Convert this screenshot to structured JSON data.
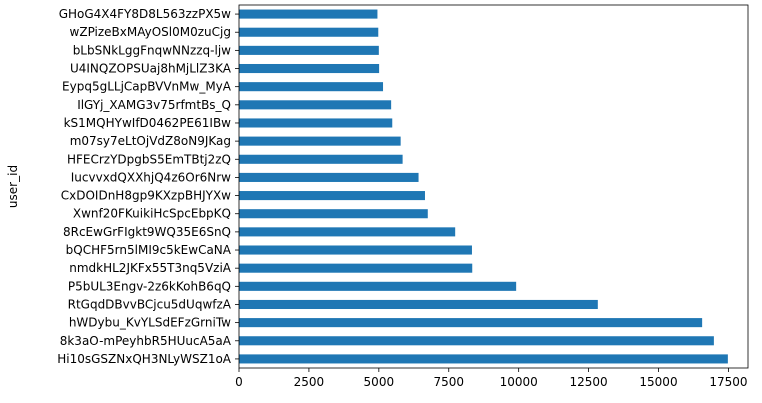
{
  "chart_data": {
    "type": "bar",
    "orientation": "horizontal",
    "ylabel": "user_id",
    "xlabel": "",
    "xlim": [
      0,
      18200
    ],
    "xticks": [
      0,
      2500,
      5000,
      7500,
      10000,
      12500,
      15000,
      17500
    ],
    "grid": false,
    "bar_color": "#1f77b4",
    "categories": [
      "GHoG4X4FY8D8L563zzPX5w",
      "wZPizeBxMAyOSl0M0zuCjg",
      "bLbSNkLggFnqwNNzzq-ljw",
      "U4INQZOPSUaj8hMjLlZ3KA",
      "Eypq5gLLjCapBVVnMw_MyA",
      "IlGYj_XAMG3v75rfmtBs_Q",
      "kS1MQHYwIfD0462PE61IBw",
      "m07sy7eLtOjVdZ8oN9JKag",
      "HFECrzYDpgbS5EmTBtj2zQ",
      "IucvvxdQXXhjQ4z6Or6Nrw",
      "CxDOIDnH8gp9KXzpBHJYXw",
      "Xwnf20FKuikiHcSpcEbpKQ",
      "8RcEwGrFIgkt9WQ35E6SnQ",
      "bQCHF5rn5lMI9c5kEwCaNA",
      "nmdkHL2JKFx55T3nq5VziA",
      "P5bUL3Engv-2z6kKohB6qQ",
      "RtGqdDBvvBCjcu5dUqwfzA",
      "hWDybu_KvYLSdEFzGrniTw",
      "8k3aO-mPeyhbR5HUucA5aA",
      "Hi10sGSZNxQH3NLyWSZ1oA"
    ],
    "values": [
      4950,
      4980,
      5000,
      5010,
      5150,
      5440,
      5480,
      5780,
      5850,
      6420,
      6650,
      6750,
      7730,
      8330,
      8340,
      9910,
      12830,
      16560,
      16980,
      17480
    ]
  }
}
